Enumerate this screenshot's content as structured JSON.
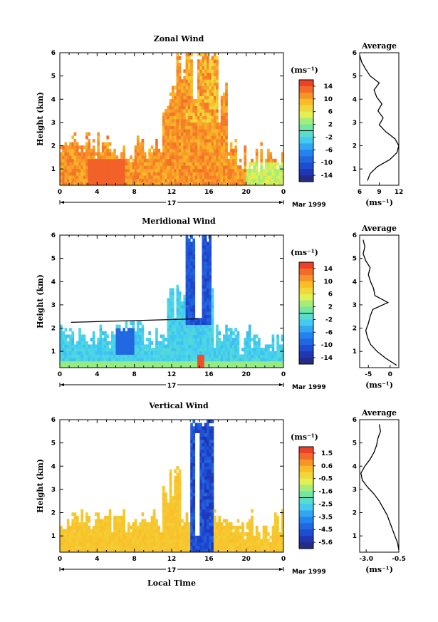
{
  "figure": {
    "xlabel": "Local Time",
    "date_label": "Mar 1999",
    "day_label": "17"
  },
  "chart_data": [
    {
      "type": "heatmap",
      "title": "Zonal Wind",
      "ylabel": "Height (km)",
      "xlim": [
        0,
        24
      ],
      "xticks": [
        "0",
        "4",
        "8",
        "12",
        "16",
        "20",
        "0"
      ],
      "ylim": [
        0.3,
        6
      ],
      "yticks": [
        "1",
        "2",
        "3",
        "4",
        "5",
        "6"
      ],
      "colorbar": {
        "unit": "(ms⁻¹)",
        "range": [
          -16,
          16
        ],
        "ticks": [
          "14",
          "10",
          "6",
          "2",
          "-2",
          "-6",
          "-10",
          "-14"
        ]
      },
      "profile": {
        "title": "Average",
        "xlabel": "(ms⁻¹)",
        "xticks": [
          "6",
          "9",
          "12"
        ],
        "xlim": [
          6,
          12
        ],
        "heights": [
          0.5,
          0.8,
          1.1,
          1.4,
          1.7,
          2.0,
          2.3,
          2.6,
          2.9,
          3.2,
          3.5,
          3.8,
          4.1,
          4.4,
          4.7,
          5.0,
          5.3,
          5.6,
          5.9
        ],
        "values": [
          7.2,
          7.6,
          8.7,
          10.6,
          11.7,
          12.0,
          11.4,
          10.0,
          9.0,
          9.6,
          8.8,
          9.4,
          8.6,
          8.2,
          9.0,
          7.6,
          6.9,
          6.3,
          6.0
        ]
      }
    },
    {
      "type": "heatmap",
      "title": "Meridional Wind",
      "ylabel": "Height (km)",
      "xlim": [
        0,
        24
      ],
      "xticks": [
        "0",
        "4",
        "8",
        "12",
        "16",
        "20",
        "0"
      ],
      "ylim": [
        0.3,
        6
      ],
      "yticks": [
        "1",
        "2",
        "3",
        "4",
        "5",
        "6"
      ],
      "colorbar": {
        "unit": "(ms⁻¹)",
        "range": [
          -16,
          16
        ],
        "ticks": [
          "14",
          "10",
          "6",
          "2",
          "-2",
          "-6",
          "-10",
          "-14"
        ]
      },
      "profile": {
        "title": "Average",
        "xlabel": "(ms⁻¹)",
        "xticks": [
          "-5",
          "0"
        ],
        "xlim": [
          -7,
          2
        ],
        "heights": [
          0.4,
          0.7,
          1.0,
          1.3,
          1.6,
          1.9,
          2.2,
          2.5,
          2.8,
          3.1,
          3.4,
          3.7,
          4.0,
          4.3,
          4.6,
          4.9,
          5.2,
          5.5,
          5.8
        ],
        "values": [
          1.5,
          -1.0,
          -3.0,
          -4.5,
          -5.2,
          -5.6,
          -5.0,
          -4.6,
          -4.0,
          -0.5,
          -3.5,
          -3.8,
          -4.5,
          -5.0,
          -4.6,
          -5.6,
          -6.2,
          -5.8,
          -6.2
        ]
      }
    },
    {
      "type": "heatmap",
      "title": "Vertical Wind",
      "ylabel": "Height (km)",
      "xlim": [
        0,
        24
      ],
      "xticks": [
        "0",
        "4",
        "8",
        "12",
        "16",
        "20",
        "0"
      ],
      "ylim": [
        0.3,
        6
      ],
      "yticks": [
        "1",
        "2",
        "3",
        "4",
        "5",
        "6"
      ],
      "colorbar": {
        "unit": "(ms⁻¹)",
        "range": [
          -6,
          2
        ],
        "ticks": [
          "1.5",
          "0.6",
          "-0.5",
          "-1.6",
          "-2.5",
          "-3.5",
          "-4.5",
          "-5.6"
        ]
      },
      "profile": {
        "title": "Average",
        "xlabel": "(ms⁻¹)",
        "xticks": [
          "-3.0",
          "-0.5"
        ],
        "xlim": [
          -3.5,
          -0.5
        ],
        "heights": [
          0.4,
          0.7,
          1.0,
          1.3,
          1.6,
          1.9,
          2.2,
          2.5,
          2.8,
          3.1,
          3.4,
          3.7,
          4.0,
          4.3,
          4.6,
          4.9,
          5.2,
          5.5,
          5.8
        ],
        "values": [
          -0.5,
          -0.6,
          -0.8,
          -1.0,
          -1.2,
          -1.4,
          -1.7,
          -2.0,
          -2.4,
          -2.9,
          -3.3,
          -3.4,
          -3.1,
          -2.7,
          -2.4,
          -2.2,
          -2.1,
          -1.9,
          -2.0
        ]
      }
    }
  ]
}
